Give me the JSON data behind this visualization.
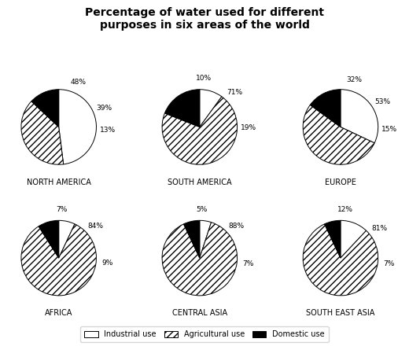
{
  "title": "Percentage of water used for different\npurposes in six areas of the world",
  "regions": [
    {
      "name": "NORTH AMERICA",
      "industrial": 48,
      "agricultural": 39,
      "domestic": 13
    },
    {
      "name": "SOUTH AMERICA",
      "industrial": 10,
      "agricultural": 71,
      "domestic": 19
    },
    {
      "name": "EUROPE",
      "industrial": 32,
      "agricultural": 53,
      "domestic": 15
    },
    {
      "name": "AFRICA",
      "industrial": 7,
      "agricultural": 84,
      "domestic": 9
    },
    {
      "name": "CENTRAL ASIA",
      "industrial": 5,
      "agricultural": 88,
      "domestic": 7
    },
    {
      "name": "SOUTH EAST ASIA",
      "industrial": 12,
      "agricultural": 81,
      "domestic": 7
    }
  ],
  "colors": {
    "industrial": "#ffffff",
    "agricultural": "#ffffff",
    "domestic": "#000000"
  },
  "hatch": {
    "industrial": "",
    "agricultural": "////",
    "domestic": ""
  },
  "legend_labels": [
    "Industrial use",
    "Agricultural use",
    "Domestic use"
  ],
  "background_color": "#ffffff"
}
